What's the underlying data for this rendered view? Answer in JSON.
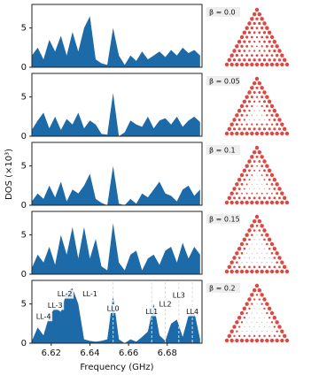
{
  "chart_data": [
    {
      "type": "area",
      "label": "β = 0.0",
      "color": "#1c6aa8",
      "ylim": [
        0,
        8
      ],
      "yticks": [
        0,
        5
      ],
      "xlim": [
        6.61,
        6.698
      ],
      "x": [
        6.61,
        6.613,
        6.616,
        6.619,
        6.622,
        6.625,
        6.628,
        6.631,
        6.634,
        6.637,
        6.64,
        6.643,
        6.646,
        6.649,
        6.652,
        6.655,
        6.658,
        6.661,
        6.664,
        6.667,
        6.67,
        6.673,
        6.676,
        6.679,
        6.682,
        6.685,
        6.688,
        6.691,
        6.694,
        6.697
      ],
      "values": [
        1.5,
        2.5,
        1,
        3.5,
        2,
        4,
        1.5,
        4.5,
        2,
        5,
        6.5,
        1,
        0.5,
        0.3,
        5,
        1.5,
        0.3,
        1.5,
        0.8,
        2,
        1,
        1.5,
        2,
        1.3,
        2.2,
        1.5,
        2.5,
        1.8,
        2.2,
        1.5
      ]
    },
    {
      "type": "area",
      "label": "β = 0.05",
      "color": "#1c6aa8",
      "ylim": [
        0,
        8
      ],
      "yticks": [
        0,
        5
      ],
      "xlim": [
        6.61,
        6.698
      ],
      "x": [
        6.61,
        6.613,
        6.616,
        6.619,
        6.622,
        6.625,
        6.628,
        6.631,
        6.634,
        6.637,
        6.64,
        6.643,
        6.646,
        6.649,
        6.652,
        6.655,
        6.658,
        6.661,
        6.664,
        6.667,
        6.67,
        6.673,
        6.676,
        6.679,
        6.682,
        6.685,
        6.688,
        6.691,
        6.694,
        6.697
      ],
      "values": [
        0.8,
        2,
        3,
        1,
        2.5,
        0.8,
        2.2,
        1.5,
        3,
        1,
        2,
        1.5,
        0.3,
        0.2,
        5.5,
        0,
        0.5,
        2,
        1.5,
        1.2,
        2.5,
        1,
        2,
        2.3,
        1.5,
        2.5,
        1.2,
        2,
        2.5,
        1.8
      ]
    },
    {
      "type": "area",
      "label": "β = 0.1",
      "color": "#1c6aa8",
      "ylim": [
        0,
        8
      ],
      "yticks": [
        0,
        5
      ],
      "xlim": [
        6.61,
        6.698
      ],
      "x": [
        6.61,
        6.613,
        6.616,
        6.619,
        6.622,
        6.625,
        6.628,
        6.631,
        6.634,
        6.637,
        6.64,
        6.643,
        6.646,
        6.649,
        6.652,
        6.655,
        6.658,
        6.661,
        6.664,
        6.667,
        6.67,
        6.673,
        6.676,
        6.679,
        6.682,
        6.685,
        6.688,
        6.691,
        6.694,
        6.697
      ],
      "values": [
        0.5,
        1.5,
        0.8,
        2.5,
        1,
        3,
        0.5,
        2,
        1.5,
        2.5,
        4,
        0.8,
        0.3,
        0,
        5,
        0.2,
        0,
        0.8,
        0.2,
        1.5,
        1,
        2,
        3,
        1.5,
        1.2,
        0.5,
        2,
        2.5,
        1.2,
        2
      ]
    },
    {
      "type": "area",
      "label": "β = 0.15",
      "color": "#1c6aa8",
      "ylim": [
        0,
        8
      ],
      "yticks": [
        0,
        5
      ],
      "xlim": [
        6.61,
        6.698
      ],
      "x": [
        6.61,
        6.613,
        6.616,
        6.619,
        6.622,
        6.625,
        6.628,
        6.631,
        6.634,
        6.637,
        6.64,
        6.643,
        6.646,
        6.649,
        6.652,
        6.655,
        6.658,
        6.661,
        6.664,
        6.667,
        6.67,
        6.673,
        6.676,
        6.679,
        6.682,
        6.685,
        6.688,
        6.691,
        6.694,
        6.697
      ],
      "values": [
        0.8,
        2.5,
        1.5,
        3.5,
        1.2,
        5,
        2.5,
        6,
        2,
        6,
        2,
        4.5,
        1,
        0.5,
        6.5,
        1.5,
        0.5,
        2.5,
        3,
        0.5,
        2,
        2.5,
        1.2,
        3,
        3.5,
        1.5,
        4,
        2,
        3.5,
        2.5
      ]
    },
    {
      "type": "area",
      "label": "β = 0.2",
      "color": "#1c6aa8",
      "ylim": [
        0,
        8
      ],
      "yticks": [
        0,
        5
      ],
      "xlim": [
        6.61,
        6.698
      ],
      "xticks": [
        6.62,
        6.64,
        6.66,
        6.68
      ],
      "xlabel": "Frequency (GHz)",
      "ylabel": "DOS (×10³)",
      "x": [
        6.61,
        6.613,
        6.616,
        6.619,
        6.622,
        6.625,
        6.628,
        6.631,
        6.634,
        6.637,
        6.64,
        6.643,
        6.646,
        6.649,
        6.652,
        6.655,
        6.658,
        6.661,
        6.664,
        6.667,
        6.67,
        6.673,
        6.676,
        6.679,
        6.682,
        6.685,
        6.688,
        6.691,
        6.694,
        6.697
      ],
      "values": [
        0.3,
        2,
        1,
        3.5,
        4.5,
        4,
        6.5,
        7,
        5,
        0.5,
        0.3,
        0.2,
        0.3,
        0.5,
        6,
        0.5,
        0,
        0.5,
        0.2,
        0.8,
        1.5,
        5,
        1,
        0.3,
        2.5,
        3,
        0.8,
        3.5,
        4,
        0.5
      ],
      "annotations": [
        {
          "text": "LL-4",
          "x": 6.616,
          "dashed": false
        },
        {
          "text": "LL-3",
          "x": 6.622,
          "dashed": false
        },
        {
          "text": "LL-2",
          "x": 6.627,
          "dashed": false
        },
        {
          "text": "LL-1",
          "x": 6.64,
          "dashed": false
        },
        {
          "text": "LL0",
          "x": 6.652,
          "dashed": true
        },
        {
          "text": "LL1",
          "x": 6.672,
          "dashed": true
        },
        {
          "text": "LL2",
          "x": 6.679,
          "dashed": true
        },
        {
          "text": "LL3",
          "x": 6.686,
          "dashed": true
        },
        {
          "text": "LL4",
          "x": 6.693,
          "dashed": true
        }
      ]
    }
  ]
}
